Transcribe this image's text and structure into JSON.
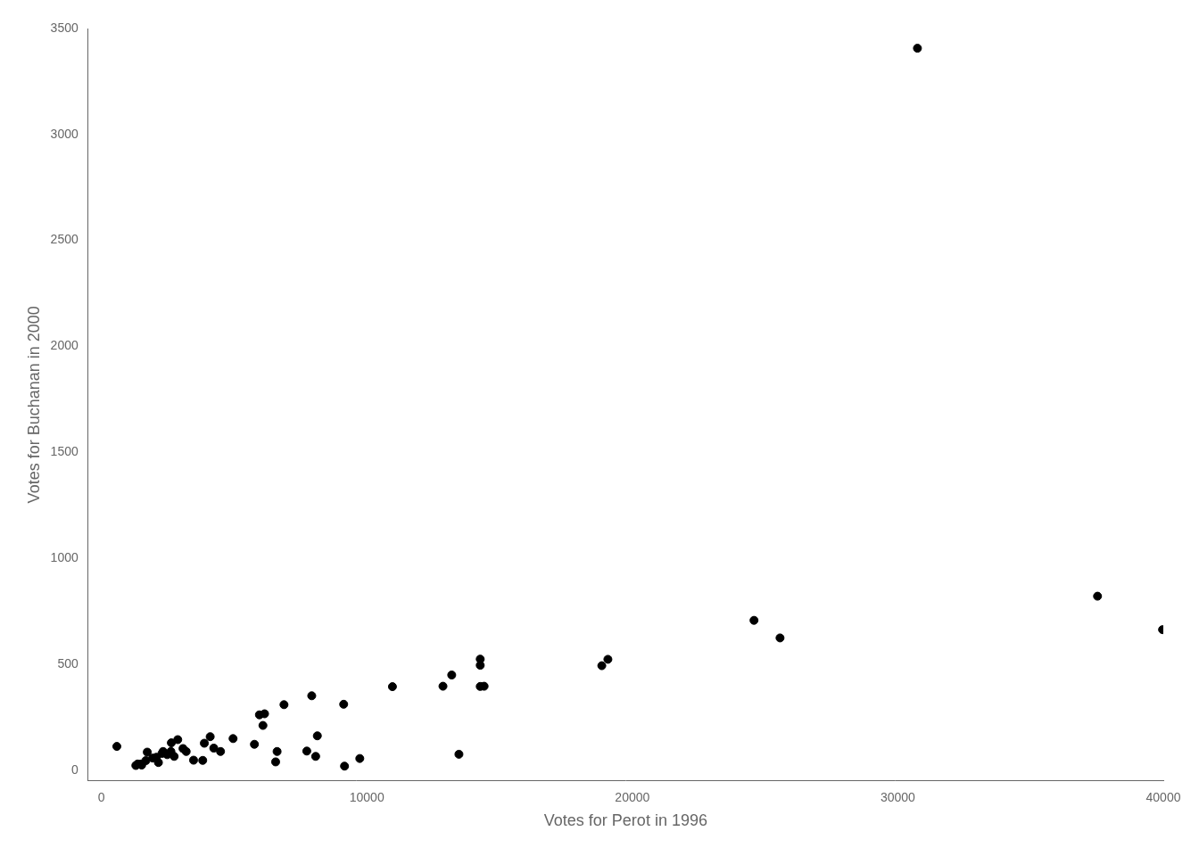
{
  "chart_data": {
    "type": "scatter",
    "x": [
      583,
      1366,
      1298,
      1518,
      1497,
      1676,
      1729,
      1932,
      2074,
      2149,
      2284,
      2326,
      2480,
      2620,
      2636,
      2741,
      2877,
      3075,
      3195,
      3473,
      3818,
      3879,
      4099,
      4234,
      4489,
      4961,
      5765,
      5953,
      6086,
      6147,
      6564,
      6619,
      6879,
      7738,
      7924,
      8072,
      8135,
      9127,
      9159,
      9734,
      10964,
      12867,
      13197,
      13468,
      14271,
      14271,
      14271,
      14417,
      18850,
      19079,
      24583,
      25563,
      30739,
      37522,
      39972
    ],
    "values": [
      112,
      29,
      22,
      24,
      29,
      45,
      85,
      57,
      61,
      36,
      79,
      88,
      73,
      88,
      129,
      65,
      144,
      102,
      88,
      47,
      46,
      127,
      158,
      104,
      88,
      149,
      122,
      261,
      211,
      266,
      39,
      88,
      309,
      90,
      351,
      65,
      162,
      311,
      19,
      55,
      394,
      396,
      449,
      75,
      395,
      495,
      524,
      396,
      493,
      523,
      707,
      624,
      3407,
      821,
      663
    ],
    "xlabel": "Votes for Perot in 1996",
    "ylabel": "Votes for Buchanan in 2000",
    "xlim": [
      -500,
      40000
    ],
    "ylim": [
      -50,
      3500
    ],
    "xticks": [
      0,
      10000,
      20000,
      30000,
      40000
    ],
    "yticks": [
      0,
      500,
      1000,
      1500,
      2000,
      2500,
      3000,
      3500
    ],
    "color": "#000000",
    "grid": false
  }
}
